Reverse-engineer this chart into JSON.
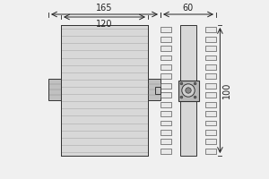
{
  "bg_color": "#f0f0f0",
  "line_color": "#333333",
  "dim_color": "#222222",
  "fill_main": "#d8d8d8",
  "fill_fin": "#e8e8e8",
  "fill_connector": "#c0c0c0",
  "dim_165_label": "165",
  "dim_120_label": "120",
  "dim_60_label": "60",
  "dim_100_label": "100",
  "font_size": 7,
  "fig_w": 3.0,
  "fig_h": 2.0,
  "dpi": 100
}
